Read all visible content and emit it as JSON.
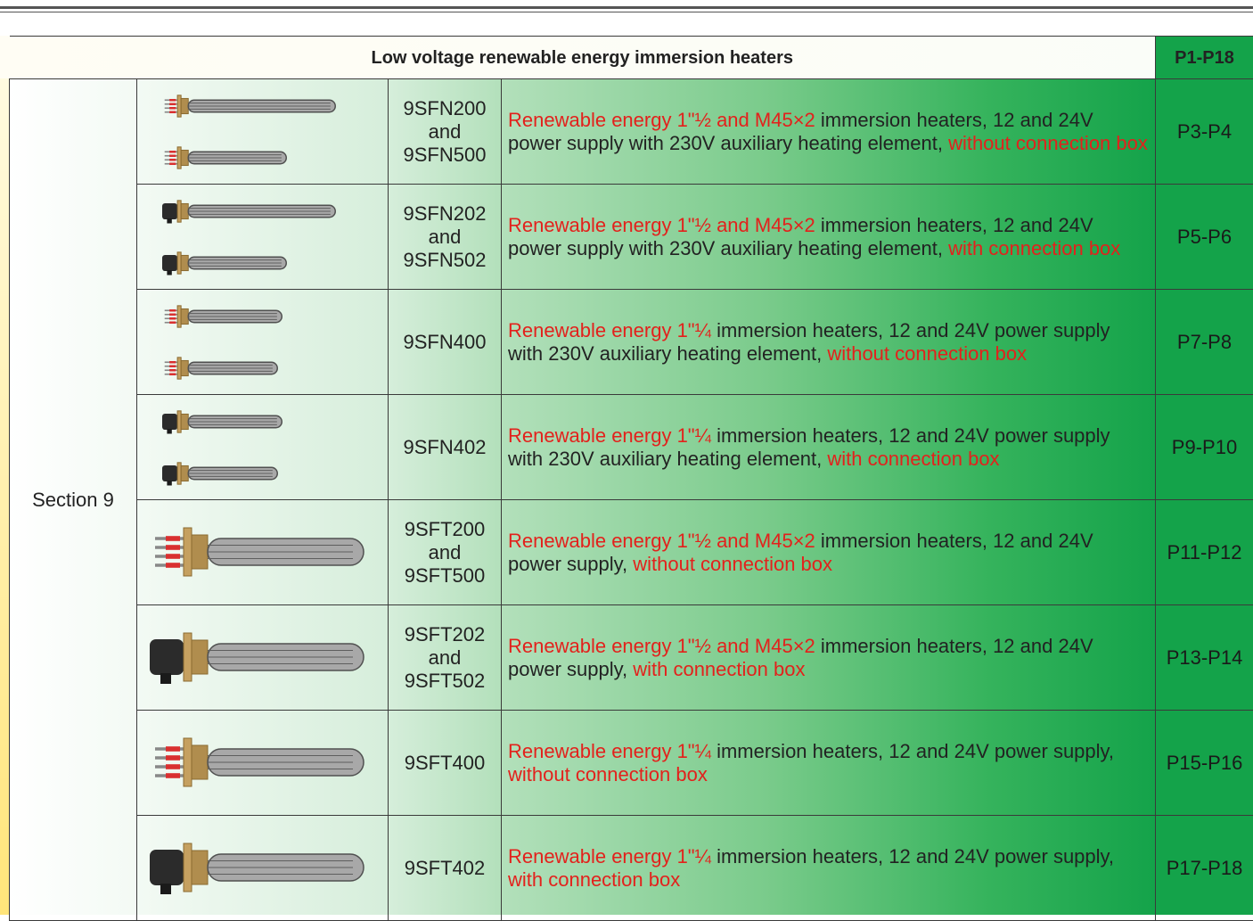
{
  "header": {
    "title": "Low voltage renewable energy immersion heaters",
    "pages": "P1-P18"
  },
  "section": "Section 9",
  "rows": [
    {
      "code": [
        "9SFN200",
        "and",
        "9SFN500"
      ],
      "description": [
        {
          "text": "Renewable energy 1\"½ and M45×2",
          "highlight": true
        },
        {
          "text": " immersion heaters, 12 and 24V power supply with 230V auxiliary heating element, ",
          "highlight": false
        },
        {
          "text": "without connection box",
          "highlight": true
        }
      ],
      "pages": "P3-P4"
    },
    {
      "code": [
        "9SFN202",
        "and",
        "9SFN502"
      ],
      "description": [
        {
          "text": "Renewable energy 1\"½ and M45×2",
          "highlight": true
        },
        {
          "text": " immersion heaters, 12 and 24V power supply with 230V auxiliary heating element, ",
          "highlight": false
        },
        {
          "text": "with connection box",
          "highlight": true
        }
      ],
      "pages": "P5-P6"
    },
    {
      "code": [
        "9SFN400"
      ],
      "description": [
        {
          "text": "Renewable energy 1\"¼",
          "highlight": true
        },
        {
          "text": " immersion heaters, 12 and 24V power supply with 230V auxiliary heating element, ",
          "highlight": false
        },
        {
          "text": "without connection box",
          "highlight": true
        }
      ],
      "pages": "P7-P8"
    },
    {
      "code": [
        "9SFN402"
      ],
      "description": [
        {
          "text": "Renewable energy 1\"¼",
          "highlight": true
        },
        {
          "text": " immersion heaters, 12 and 24V power supply with 230V auxiliary heating element, ",
          "highlight": false
        },
        {
          "text": "with connection box",
          "highlight": true
        }
      ],
      "pages": "P9-P10"
    },
    {
      "code": [
        "9SFT200",
        "and",
        "9SFT500"
      ],
      "description": [
        {
          "text": "Renewable energy 1\"½ and M45×2",
          "highlight": true
        },
        {
          "text": " immersion heaters, 12 and 24V power supply, ",
          "highlight": false
        },
        {
          "text": "without connection box",
          "highlight": true
        }
      ],
      "pages": "P11-P12"
    },
    {
      "code": [
        "9SFT202",
        "and",
        "9SFT502"
      ],
      "description": [
        {
          "text": "Renewable energy 1\"½ and M45×2",
          "highlight": true
        },
        {
          "text": " immersion heaters, 12 and 24V power supply, ",
          "highlight": false
        },
        {
          "text": "with connection box",
          "highlight": true
        }
      ],
      "pages": "P13-P14"
    },
    {
      "code": [
        "9SFT400"
      ],
      "description": [
        {
          "text": "Renewable energy 1\"¼",
          "highlight": true
        },
        {
          "text": " immersion heaters, 12 and 24V power supply, ",
          "highlight": false
        },
        {
          "text": "without connection box",
          "highlight": true
        }
      ],
      "pages": "P15-P16"
    },
    {
      "code": [
        "9SFT402"
      ],
      "description": [
        {
          "text": "Renewable energy 1\"¼",
          "highlight": true
        },
        {
          "text": " immersion heaters, 12 and 24V power supply, ",
          "highlight": false
        },
        {
          "text": "with connection box",
          "highlight": true
        }
      ],
      "pages": "P17-P18"
    }
  ]
}
